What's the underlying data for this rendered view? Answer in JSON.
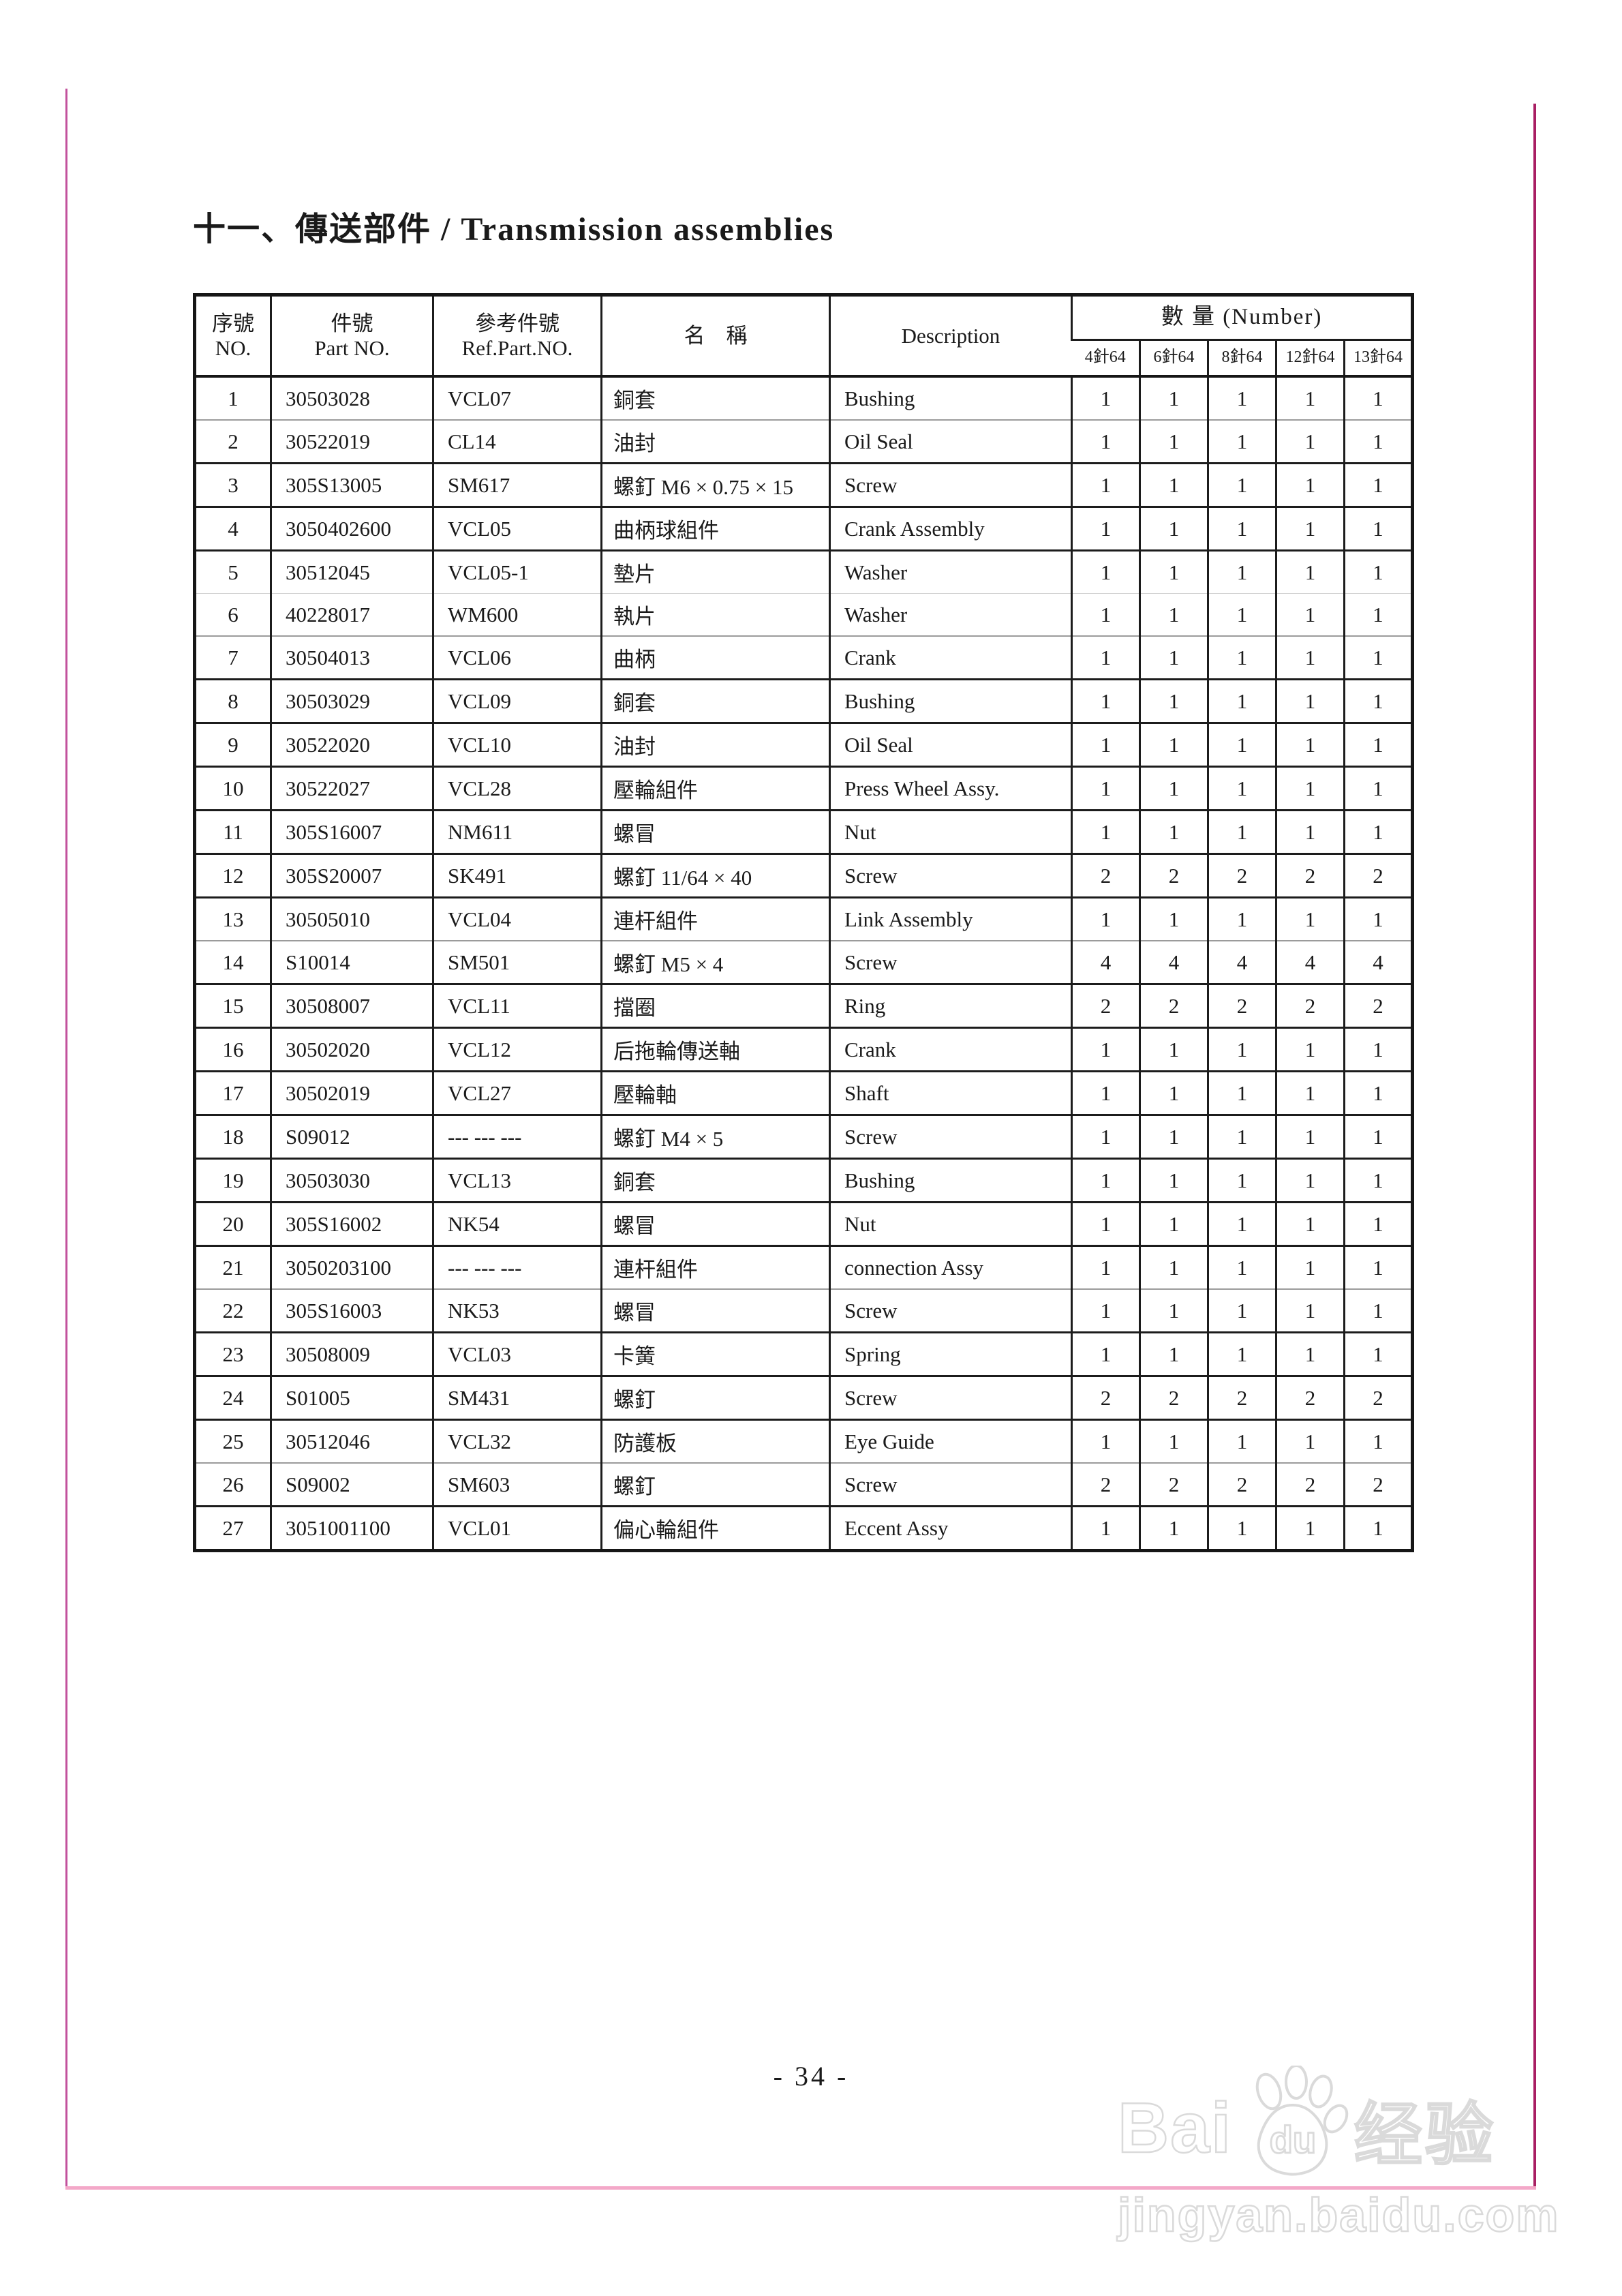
{
  "page": {
    "title": "十一、傳送部件  / Transmission assemblies",
    "page_number": "- 34 -"
  },
  "table": {
    "headers": {
      "no_zh": "序號",
      "no_en": "NO.",
      "part_zh": "件號",
      "part_en": "Part NO.",
      "ref_zh": "參考件號",
      "ref_en": "Ref.Part.NO.",
      "name_zh": "名　稱",
      "desc_en": "Description",
      "qty_group": "數 量 (Number)",
      "qty_cols": [
        "4針64",
        "6針64",
        "8針64",
        "12針64",
        "13針64"
      ]
    },
    "rows": [
      {
        "no": "1",
        "part": "30503028",
        "ref": "VCL07",
        "name": "銅套",
        "desc": "Bushing",
        "qty": [
          "1",
          "1",
          "1",
          "1",
          "1"
        ]
      },
      {
        "no": "2",
        "part": "30522019",
        "ref": "CL14",
        "name": "油封",
        "desc": "Oil Seal",
        "qty": [
          "1",
          "1",
          "1",
          "1",
          "1"
        ]
      },
      {
        "no": "3",
        "part": "305S13005",
        "ref": "SM617",
        "name": "螺釘 M6 × 0.75 × 15",
        "desc": "Screw",
        "qty": [
          "1",
          "1",
          "1",
          "1",
          "1"
        ]
      },
      {
        "no": "4",
        "part": "3050402600",
        "ref": "VCL05",
        "name": "曲柄球組件",
        "desc": "Crank Assembly",
        "qty": [
          "1",
          "1",
          "1",
          "1",
          "1"
        ]
      },
      {
        "no": "5",
        "part": "30512045",
        "ref": "VCL05-1",
        "name": "墊片",
        "desc": "Washer",
        "qty": [
          "1",
          "1",
          "1",
          "1",
          "1"
        ]
      },
      {
        "no": "6",
        "part": "40228017",
        "ref": "WM600",
        "name": "執片",
        "desc": "Washer",
        "qty": [
          "1",
          "1",
          "1",
          "1",
          "1"
        ]
      },
      {
        "no": "7",
        "part": "30504013",
        "ref": "VCL06",
        "name": "曲柄",
        "desc": "Crank",
        "qty": [
          "1",
          "1",
          "1",
          "1",
          "1"
        ]
      },
      {
        "no": "8",
        "part": "30503029",
        "ref": "VCL09",
        "name": "銅套",
        "desc": "Bushing",
        "qty": [
          "1",
          "1",
          "1",
          "1",
          "1"
        ]
      },
      {
        "no": "9",
        "part": "30522020",
        "ref": "VCL10",
        "name": "油封",
        "desc": "Oil Seal",
        "qty": [
          "1",
          "1",
          "1",
          "1",
          "1"
        ]
      },
      {
        "no": "10",
        "part": "30522027",
        "ref": "VCL28",
        "name": "壓輪組件",
        "desc": "Press Wheel Assy.",
        "qty": [
          "1",
          "1",
          "1",
          "1",
          "1"
        ]
      },
      {
        "no": "11",
        "part": "305S16007",
        "ref": "NM611",
        "name": "螺冒",
        "desc": "Nut",
        "qty": [
          "1",
          "1",
          "1",
          "1",
          "1"
        ]
      },
      {
        "no": "12",
        "part": "305S20007",
        "ref": "SK491",
        "name": "螺釘 11/64 × 40",
        "desc": "Screw",
        "qty": [
          "2",
          "2",
          "2",
          "2",
          "2"
        ]
      },
      {
        "no": "13",
        "part": "30505010",
        "ref": "VCL04",
        "name": "連杆組件",
        "desc": "Link Assembly",
        "qty": [
          "1",
          "1",
          "1",
          "1",
          "1"
        ]
      },
      {
        "no": "14",
        "part": "S10014",
        "ref": "SM501",
        "name": "螺釘 M5 × 4",
        "desc": "Screw",
        "qty": [
          "4",
          "4",
          "4",
          "4",
          "4"
        ]
      },
      {
        "no": "15",
        "part": "30508007",
        "ref": "VCL11",
        "name": "擋圈",
        "desc": "Ring",
        "qty": [
          "2",
          "2",
          "2",
          "2",
          "2"
        ]
      },
      {
        "no": "16",
        "part": "30502020",
        "ref": "VCL12",
        "name": "后拖輪傳送軸",
        "desc": "Crank",
        "qty": [
          "1",
          "1",
          "1",
          "1",
          "1"
        ]
      },
      {
        "no": "17",
        "part": "30502019",
        "ref": "VCL27",
        "name": "壓輪軸",
        "desc": "Shaft",
        "qty": [
          "1",
          "1",
          "1",
          "1",
          "1"
        ]
      },
      {
        "no": "18",
        "part": "S09012",
        "ref": "--- --- ---",
        "name": "螺釘 M4 × 5",
        "desc": "Screw",
        "qty": [
          "1",
          "1",
          "1",
          "1",
          "1"
        ]
      },
      {
        "no": "19",
        "part": "30503030",
        "ref": "VCL13",
        "name": "銅套",
        "desc": "Bushing",
        "qty": [
          "1",
          "1",
          "1",
          "1",
          "1"
        ]
      },
      {
        "no": "20",
        "part": "305S16002",
        "ref": "NK54",
        "name": "螺冒",
        "desc": "Nut",
        "qty": [
          "1",
          "1",
          "1",
          "1",
          "1"
        ]
      },
      {
        "no": "21",
        "part": "3050203100",
        "ref": "--- --- ---",
        "name": "連杆組件",
        "desc": "connection Assy",
        "qty": [
          "1",
          "1",
          "1",
          "1",
          "1"
        ]
      },
      {
        "no": "22",
        "part": "305S16003",
        "ref": "NK53",
        "name": "螺冒",
        "desc": "Screw",
        "qty": [
          "1",
          "1",
          "1",
          "1",
          "1"
        ]
      },
      {
        "no": "23",
        "part": "30508009",
        "ref": "VCL03",
        "name": "卡簧",
        "desc": "Spring",
        "qty": [
          "1",
          "1",
          "1",
          "1",
          "1"
        ]
      },
      {
        "no": "24",
        "part": "S01005",
        "ref": "SM431",
        "name": "螺釘",
        "desc": "Screw",
        "qty": [
          "2",
          "2",
          "2",
          "2",
          "2"
        ]
      },
      {
        "no": "25",
        "part": "30512046",
        "ref": "VCL32",
        "name": "防護板",
        "desc": "Eye Guide",
        "qty": [
          "1",
          "1",
          "1",
          "1",
          "1"
        ]
      },
      {
        "no": "26",
        "part": "S09002",
        "ref": "SM603",
        "name": "螺釘",
        "desc": "Screw",
        "qty": [
          "2",
          "2",
          "2",
          "2",
          "2"
        ]
      },
      {
        "no": "27",
        "part": "3051001100",
        "ref": "VCL01",
        "name": "偏心輪組件",
        "desc": "Eccent Assy",
        "qty": [
          "1",
          "1",
          "1",
          "1",
          "1"
        ]
      }
    ]
  },
  "watermark": {
    "brand_left": "Bai",
    "brand_paw": "du",
    "brand_right": "经验",
    "domain": "jingyan.baidu.com"
  },
  "colors": {
    "frame_left": "#c2519c",
    "frame_right": "#a91f63",
    "frame_bottom": "#f3a8c8",
    "ink": "#1a1a1a",
    "watermark": "#dadada"
  }
}
